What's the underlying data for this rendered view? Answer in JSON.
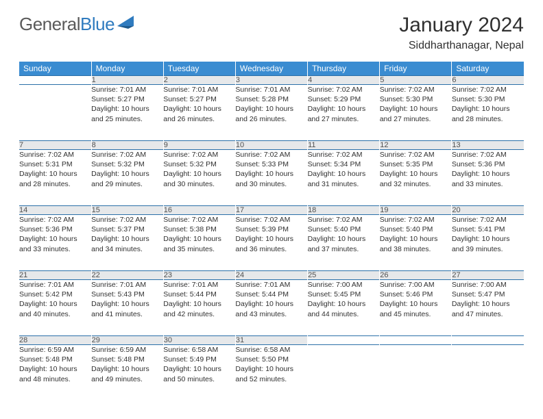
{
  "logo": {
    "text1": "General",
    "text2": "Blue"
  },
  "title": "January 2024",
  "location": "Siddharthanagar, Nepal",
  "colors": {
    "header_bg": "#3a8cd1",
    "header_text": "#ffffff",
    "daynum_bg": "#e6e8ea",
    "rule": "#2a6fa8",
    "body_text": "#303030"
  },
  "weekdays": [
    "Sunday",
    "Monday",
    "Tuesday",
    "Wednesday",
    "Thursday",
    "Friday",
    "Saturday"
  ],
  "weeks": [
    {
      "nums": [
        "",
        "1",
        "2",
        "3",
        "4",
        "5",
        "6"
      ],
      "cells": [
        null,
        {
          "sunrise": "Sunrise: 7:01 AM",
          "sunset": "Sunset: 5:27 PM",
          "day1": "Daylight: 10 hours",
          "day2": "and 25 minutes."
        },
        {
          "sunrise": "Sunrise: 7:01 AM",
          "sunset": "Sunset: 5:27 PM",
          "day1": "Daylight: 10 hours",
          "day2": "and 26 minutes."
        },
        {
          "sunrise": "Sunrise: 7:01 AM",
          "sunset": "Sunset: 5:28 PM",
          "day1": "Daylight: 10 hours",
          "day2": "and 26 minutes."
        },
        {
          "sunrise": "Sunrise: 7:02 AM",
          "sunset": "Sunset: 5:29 PM",
          "day1": "Daylight: 10 hours",
          "day2": "and 27 minutes."
        },
        {
          "sunrise": "Sunrise: 7:02 AM",
          "sunset": "Sunset: 5:30 PM",
          "day1": "Daylight: 10 hours",
          "day2": "and 27 minutes."
        },
        {
          "sunrise": "Sunrise: 7:02 AM",
          "sunset": "Sunset: 5:30 PM",
          "day1": "Daylight: 10 hours",
          "day2": "and 28 minutes."
        }
      ]
    },
    {
      "nums": [
        "7",
        "8",
        "9",
        "10",
        "11",
        "12",
        "13"
      ],
      "cells": [
        {
          "sunrise": "Sunrise: 7:02 AM",
          "sunset": "Sunset: 5:31 PM",
          "day1": "Daylight: 10 hours",
          "day2": "and 28 minutes."
        },
        {
          "sunrise": "Sunrise: 7:02 AM",
          "sunset": "Sunset: 5:32 PM",
          "day1": "Daylight: 10 hours",
          "day2": "and 29 minutes."
        },
        {
          "sunrise": "Sunrise: 7:02 AM",
          "sunset": "Sunset: 5:32 PM",
          "day1": "Daylight: 10 hours",
          "day2": "and 30 minutes."
        },
        {
          "sunrise": "Sunrise: 7:02 AM",
          "sunset": "Sunset: 5:33 PM",
          "day1": "Daylight: 10 hours",
          "day2": "and 30 minutes."
        },
        {
          "sunrise": "Sunrise: 7:02 AM",
          "sunset": "Sunset: 5:34 PM",
          "day1": "Daylight: 10 hours",
          "day2": "and 31 minutes."
        },
        {
          "sunrise": "Sunrise: 7:02 AM",
          "sunset": "Sunset: 5:35 PM",
          "day1": "Daylight: 10 hours",
          "day2": "and 32 minutes."
        },
        {
          "sunrise": "Sunrise: 7:02 AM",
          "sunset": "Sunset: 5:36 PM",
          "day1": "Daylight: 10 hours",
          "day2": "and 33 minutes."
        }
      ]
    },
    {
      "nums": [
        "14",
        "15",
        "16",
        "17",
        "18",
        "19",
        "20"
      ],
      "cells": [
        {
          "sunrise": "Sunrise: 7:02 AM",
          "sunset": "Sunset: 5:36 PM",
          "day1": "Daylight: 10 hours",
          "day2": "and 33 minutes."
        },
        {
          "sunrise": "Sunrise: 7:02 AM",
          "sunset": "Sunset: 5:37 PM",
          "day1": "Daylight: 10 hours",
          "day2": "and 34 minutes."
        },
        {
          "sunrise": "Sunrise: 7:02 AM",
          "sunset": "Sunset: 5:38 PM",
          "day1": "Daylight: 10 hours",
          "day2": "and 35 minutes."
        },
        {
          "sunrise": "Sunrise: 7:02 AM",
          "sunset": "Sunset: 5:39 PM",
          "day1": "Daylight: 10 hours",
          "day2": "and 36 minutes."
        },
        {
          "sunrise": "Sunrise: 7:02 AM",
          "sunset": "Sunset: 5:40 PM",
          "day1": "Daylight: 10 hours",
          "day2": "and 37 minutes."
        },
        {
          "sunrise": "Sunrise: 7:02 AM",
          "sunset": "Sunset: 5:40 PM",
          "day1": "Daylight: 10 hours",
          "day2": "and 38 minutes."
        },
        {
          "sunrise": "Sunrise: 7:02 AM",
          "sunset": "Sunset: 5:41 PM",
          "day1": "Daylight: 10 hours",
          "day2": "and 39 minutes."
        }
      ]
    },
    {
      "nums": [
        "21",
        "22",
        "23",
        "24",
        "25",
        "26",
        "27"
      ],
      "cells": [
        {
          "sunrise": "Sunrise: 7:01 AM",
          "sunset": "Sunset: 5:42 PM",
          "day1": "Daylight: 10 hours",
          "day2": "and 40 minutes."
        },
        {
          "sunrise": "Sunrise: 7:01 AM",
          "sunset": "Sunset: 5:43 PM",
          "day1": "Daylight: 10 hours",
          "day2": "and 41 minutes."
        },
        {
          "sunrise": "Sunrise: 7:01 AM",
          "sunset": "Sunset: 5:44 PM",
          "day1": "Daylight: 10 hours",
          "day2": "and 42 minutes."
        },
        {
          "sunrise": "Sunrise: 7:01 AM",
          "sunset": "Sunset: 5:44 PM",
          "day1": "Daylight: 10 hours",
          "day2": "and 43 minutes."
        },
        {
          "sunrise": "Sunrise: 7:00 AM",
          "sunset": "Sunset: 5:45 PM",
          "day1": "Daylight: 10 hours",
          "day2": "and 44 minutes."
        },
        {
          "sunrise": "Sunrise: 7:00 AM",
          "sunset": "Sunset: 5:46 PM",
          "day1": "Daylight: 10 hours",
          "day2": "and 45 minutes."
        },
        {
          "sunrise": "Sunrise: 7:00 AM",
          "sunset": "Sunset: 5:47 PM",
          "day1": "Daylight: 10 hours",
          "day2": "and 47 minutes."
        }
      ]
    },
    {
      "nums": [
        "28",
        "29",
        "30",
        "31",
        "",
        "",
        ""
      ],
      "cells": [
        {
          "sunrise": "Sunrise: 6:59 AM",
          "sunset": "Sunset: 5:48 PM",
          "day1": "Daylight: 10 hours",
          "day2": "and 48 minutes."
        },
        {
          "sunrise": "Sunrise: 6:59 AM",
          "sunset": "Sunset: 5:48 PM",
          "day1": "Daylight: 10 hours",
          "day2": "and 49 minutes."
        },
        {
          "sunrise": "Sunrise: 6:58 AM",
          "sunset": "Sunset: 5:49 PM",
          "day1": "Daylight: 10 hours",
          "day2": "and 50 minutes."
        },
        {
          "sunrise": "Sunrise: 6:58 AM",
          "sunset": "Sunset: 5:50 PM",
          "day1": "Daylight: 10 hours",
          "day2": "and 52 minutes."
        },
        null,
        null,
        null
      ]
    }
  ]
}
